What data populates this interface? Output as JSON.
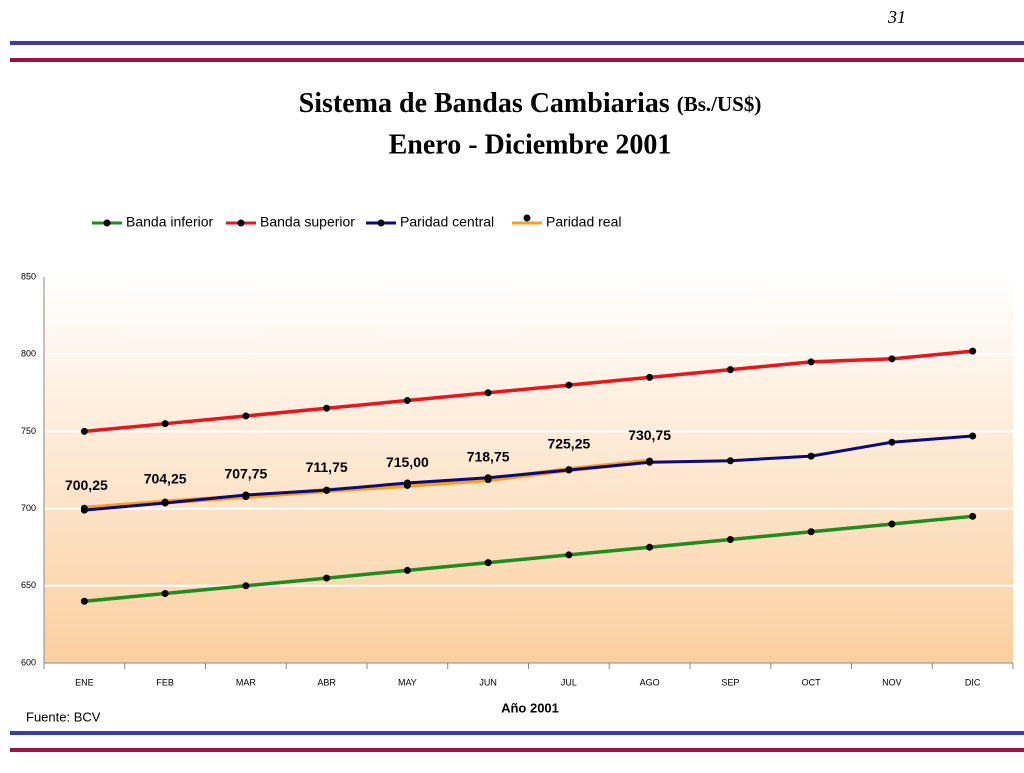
{
  "page_number": "31",
  "source": "Fuente: BCV",
  "chart_data": {
    "type": "line",
    "title": "Sistema de Bandas Cambiarias",
    "title_note": "(Bs./US$)",
    "subtitle": "Enero - Diciembre 2001",
    "x_label": "Año 2001",
    "categories": [
      "ENE",
      "FEB",
      "MAR",
      "ABR",
      "MAY",
      "JUN",
      "JUL",
      "AGO",
      "SEP",
      "OCT",
      "NOV",
      "DIC"
    ],
    "series": [
      {
        "name": "Banda inferior",
        "color": "#1e8c1e",
        "values": [
          640,
          645,
          650,
          655,
          660,
          665,
          670,
          675,
          680,
          685,
          690,
          695
        ]
      },
      {
        "name": "Banda superior",
        "color": "#e8141e",
        "values": [
          750,
          755,
          760,
          765,
          770,
          775,
          780,
          785,
          790,
          795,
          797,
          802
        ]
      },
      {
        "name": "Paridad central",
        "color": "#0a0a7a",
        "values": [
          699,
          703.6,
          708.8,
          712,
          716.6,
          720,
          725,
          730,
          731,
          734,
          743,
          747
        ]
      },
      {
        "name": "Paridad real",
        "color": "#f5a020",
        "values": [
          700.25,
          704.25,
          707.75,
          711.75,
          715.0,
          718.75,
          725.25,
          730.75,
          null,
          null,
          null,
          null
        ],
        "value_labels": [
          "700,25",
          "704,25",
          "707,75",
          "711,75",
          "715,00",
          "718,75",
          "725,25",
          "730,75",
          null,
          null,
          null,
          null
        ]
      }
    ],
    "ylim": [
      600,
      850
    ],
    "yticks": [
      600,
      650,
      700,
      750,
      800,
      850
    ],
    "grid": true,
    "legend": "top"
  }
}
